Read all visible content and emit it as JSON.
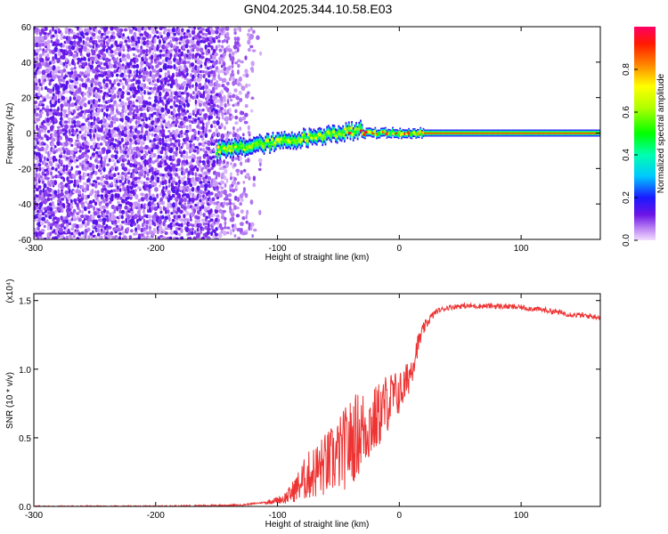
{
  "title": "GN04.2025.344.10.58.E03",
  "colors": {
    "snr_line": "#ee3333",
    "background": "#ffffff",
    "axis": "#000000"
  },
  "chart_data": [
    {
      "type": "heatmap",
      "name": "spectrogram",
      "title": "GN04.2025.344.10.58.E03",
      "xlabel": "Height of straight line (km)",
      "ylabel": "Frequency (Hz)",
      "xlim": [
        -300,
        165
      ],
      "ylim": [
        -60,
        60
      ],
      "xticks": [
        -300,
        -200,
        -100,
        0,
        100
      ],
      "yticks": [
        -60,
        -40,
        -20,
        0,
        20,
        40,
        60
      ],
      "xtick_labels": [
        "-300",
        "-200",
        "-100",
        "0",
        "100"
      ],
      "ytick_labels": [
        "-60",
        "-40",
        "-20",
        "0",
        "20",
        "40",
        "60"
      ],
      "colorbar": {
        "label": "Normalized spectral amplitude",
        "range": [
          0,
          1
        ],
        "ticks": [
          0,
          0.2,
          0.4,
          0.6,
          0.8
        ],
        "tick_labels": [
          "0.0",
          "0.2",
          "0.4",
          "0.6",
          "0.8"
        ],
        "colormap": "rainbow (white-violet-blue-cyan-green-yellow-red-magenta)"
      },
      "features": {
        "broadband_noise_x_range": [
          -300,
          -115
        ],
        "noise_amplitude_range": [
          0.02,
          0.15
        ],
        "signal_x_range": [
          -150,
          165
        ],
        "signal_center_freq_hz": 0,
        "signal_peak_amplitude": 0.85
      }
    },
    {
      "type": "line",
      "name": "snr",
      "xlabel": "Height of straight line (km)",
      "ylabel": "SNR (10 * v/v)",
      "y_multiplier_label": "(x10⁴)",
      "xlim": [
        -300,
        165
      ],
      "ylim": [
        0,
        1.55
      ],
      "xticks": [
        -300,
        -200,
        -100,
        0,
        100
      ],
      "yticks": [
        0,
        0.5,
        1.0,
        1.5
      ],
      "xtick_labels": [
        "-300",
        "-200",
        "-100",
        "0",
        "100"
      ],
      "ytick_labels": [
        "0.0",
        "0.5",
        "1.0",
        "1.5"
      ],
      "series": [
        {
          "name": "SNR",
          "x": [
            -300,
            -200,
            -130,
            -110,
            -100,
            -95,
            -90,
            -85,
            -80,
            -75,
            -70,
            -65,
            -60,
            -55,
            -50,
            -45,
            -40,
            -35,
            -30,
            -25,
            -20,
            -15,
            -10,
            -5,
            0,
            5,
            10,
            15,
            20,
            25,
            30,
            40,
            50,
            60,
            80,
            100,
            120,
            140,
            165
          ],
          "values": [
            0.0,
            0.0,
            0.01,
            0.03,
            0.05,
            0.06,
            0.09,
            0.14,
            0.19,
            0.24,
            0.27,
            0.3,
            0.33,
            0.36,
            0.4,
            0.45,
            0.5,
            0.55,
            0.59,
            0.62,
            0.65,
            0.71,
            0.78,
            0.82,
            0.84,
            0.9,
            1.02,
            1.18,
            1.3,
            1.37,
            1.42,
            1.45,
            1.46,
            1.46,
            1.46,
            1.45,
            1.43,
            1.4,
            1.38
          ],
          "noise_envelope": [
            0.0,
            0.0,
            0.01,
            0.02,
            0.03,
            0.05,
            0.08,
            0.12,
            0.18,
            0.22,
            0.25,
            0.28,
            0.3,
            0.32,
            0.34,
            0.38,
            0.4,
            0.4,
            0.38,
            0.35,
            0.32,
            0.3,
            0.28,
            0.24,
            0.2,
            0.18,
            0.16,
            0.1,
            0.06,
            0.04,
            0.03,
            0.02,
            0.02,
            0.02,
            0.02,
            0.02,
            0.02,
            0.02,
            0.02
          ]
        }
      ]
    }
  ]
}
